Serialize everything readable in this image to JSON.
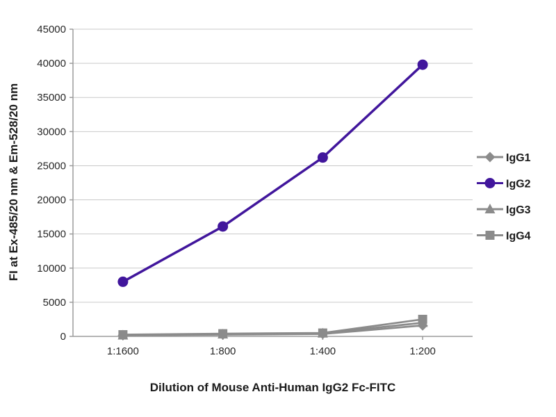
{
  "figure": {
    "background": "#ffffff"
  },
  "chart_data": {
    "type": "line",
    "title": "",
    "xlabel": "Dilution of Mouse Anti-Human IgG2 Fc-FITC",
    "ylabel": "FI at Ex-485/20 nm & Em-528/20 nm",
    "categories": [
      "1:1600",
      "1:800",
      "1:400",
      "1:200"
    ],
    "ylim": [
      0,
      45000
    ],
    "ytick_step": 5000,
    "grid": true,
    "legend_position": "right",
    "series": [
      {
        "name": "IgG1",
        "marker": "diamond",
        "color": "#8b8b8b",
        "values": [
          150,
          250,
          350,
          1600
        ]
      },
      {
        "name": "IgG2",
        "marker": "circle",
        "color": "#41169c",
        "values": [
          8000,
          16100,
          26200,
          39800
        ]
      },
      {
        "name": "IgG3",
        "marker": "triangle",
        "color": "#8b8b8b",
        "values": [
          150,
          300,
          450,
          2000
        ]
      },
      {
        "name": "IgG4",
        "marker": "square",
        "color": "#8b8b8b",
        "values": [
          250,
          400,
          500,
          2500
        ]
      }
    ],
    "colors": {
      "grid": "#c9c9c9",
      "axis": "#9b9b9b",
      "tick_text": "#262626",
      "title_text": "#1a1a1a"
    }
  }
}
